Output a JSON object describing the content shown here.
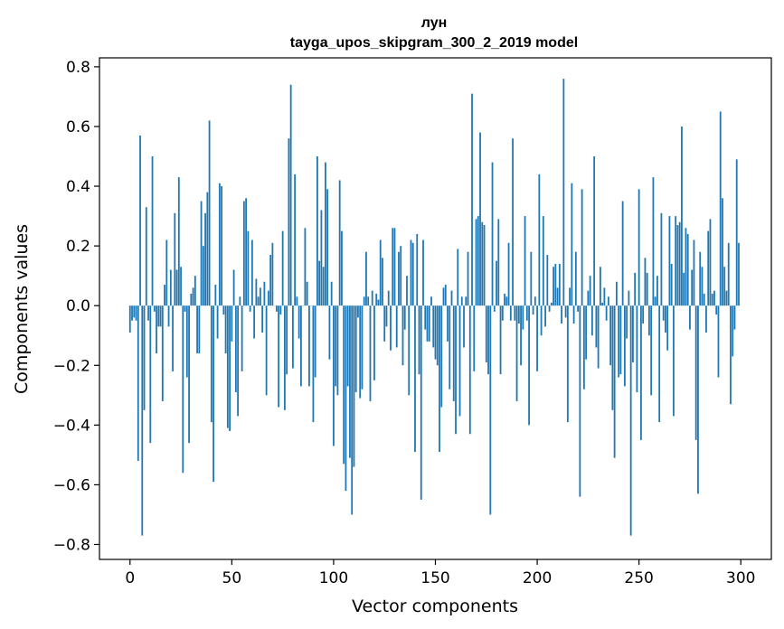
{
  "chart_data": {
    "type": "bar",
    "title_line1": "лун",
    "title_line2": "tayga_upos_skipgram_300_2_2019 model",
    "xlabel": "Vector components",
    "ylabel": "Components values",
    "xlim": [
      -15,
      315
    ],
    "ylim": [
      -0.85,
      0.83
    ],
    "xticks": [
      0,
      50,
      100,
      150,
      200,
      250,
      300
    ],
    "xtick_labels": [
      "0",
      "50",
      "100",
      "150",
      "200",
      "250",
      "300"
    ],
    "yticks": [
      -0.8,
      -0.6,
      -0.4,
      -0.2,
      0.0,
      0.2,
      0.4,
      0.6,
      0.8
    ],
    "ytick_labels": [
      "−0.8",
      "−0.6",
      "−0.4",
      "−0.2",
      "0.0",
      "0.2",
      "0.4",
      "0.6",
      "0.8"
    ],
    "bar_color": "#1f77b4",
    "values": [
      -0.09,
      -0.05,
      -0.04,
      -0.05,
      -0.52,
      0.57,
      -0.77,
      -0.35,
      0.33,
      -0.05,
      -0.46,
      0.5,
      -0.02,
      -0.16,
      -0.07,
      -0.07,
      -0.32,
      0.07,
      0.22,
      -0.07,
      0.12,
      -0.22,
      0.31,
      0.12,
      0.43,
      0.13,
      -0.56,
      -0.02,
      -0.24,
      -0.46,
      0.04,
      0.06,
      0.1,
      -0.16,
      -0.16,
      0.35,
      0.2,
      0.31,
      0.38,
      0.62,
      -0.39,
      -0.59,
      0.07,
      -0.11,
      0.41,
      0.4,
      -0.03,
      -0.16,
      -0.41,
      -0.42,
      -0.12,
      0.12,
      -0.29,
      -0.37,
      0.03,
      -0.22,
      0.35,
      0.36,
      0.25,
      -0.02,
      0.22,
      -0.11,
      0.09,
      0.03,
      0.06,
      -0.09,
      0.08,
      -0.3,
      0.05,
      0.17,
      0.21,
      0.0,
      -0.02,
      -0.34,
      -0.03,
      0.25,
      -0.35,
      -0.23,
      0.56,
      0.74,
      -0.21,
      0.44,
      0.03,
      -0.11,
      -0.27,
      0.0,
      0.26,
      0.08,
      -0.27,
      0.0,
      -0.39,
      -0.24,
      0.5,
      0.15,
      0.32,
      0.13,
      0.48,
      0.39,
      -0.18,
      0.08,
      -0.47,
      -0.27,
      -0.3,
      0.42,
      0.25,
      -0.53,
      -0.62,
      -0.27,
      -0.51,
      -0.7,
      -0.54,
      -0.29,
      -0.04,
      -0.31,
      -0.28,
      0.03,
      0.18,
      0.03,
      -0.32,
      0.05,
      -0.25,
      0.04,
      0.02,
      0.22,
      0.16,
      -0.12,
      -0.07,
      0.05,
      -0.15,
      0.26,
      0.26,
      -0.14,
      0.18,
      0.2,
      -0.2,
      -0.08,
      0.1,
      -0.3,
      0.22,
      0.21,
      -0.49,
      0.24,
      -0.23,
      -0.65,
      0.22,
      -0.08,
      -0.12,
      -0.12,
      0.03,
      -0.14,
      -0.18,
      -0.2,
      -0.49,
      -0.34,
      0.06,
      0.07,
      -0.12,
      -0.28,
      0.05,
      -0.32,
      -0.43,
      0.19,
      -0.37,
      0.03,
      -0.14,
      0.03,
      0.18,
      -0.43,
      0.71,
      -0.22,
      0.29,
      0.3,
      0.58,
      0.28,
      0.27,
      -0.19,
      -0.23,
      -0.7,
      0.48,
      -0.02,
      0.15,
      0.29,
      -0.23,
      -0.05,
      0.04,
      0.03,
      0.21,
      -0.05,
      0.56,
      -0.05,
      -0.32,
      -0.06,
      -0.2,
      -0.08,
      0.3,
      -0.05,
      -0.4,
      0.18,
      -0.03,
      0.03,
      -0.22,
      0.44,
      -0.1,
      0.3,
      -0.07,
      0.17,
      -0.02,
      0.01,
      0.13,
      0.14,
      0.06,
      0.14,
      -0.06,
      0.76,
      -0.04,
      -0.39,
      0.06,
      0.41,
      -0.06,
      0.18,
      -0.02,
      -0.64,
      0.39,
      -0.28,
      -0.18,
      0.05,
      0.1,
      -0.1,
      0.5,
      -0.14,
      -0.21,
      0.13,
      0.01,
      0.06,
      -0.05,
      0.03,
      -0.2,
      -0.35,
      -0.51,
      0.08,
      -0.24,
      -0.23,
      0.35,
      -0.27,
      -0.11,
      0.05,
      -0.77,
      -0.19,
      0.11,
      -0.29,
      0.39,
      -0.45,
      -0.06,
      0.16,
      0.11,
      -0.1,
      -0.3,
      0.43,
      0.03,
      0.1,
      -0.39,
      0.31,
      -0.05,
      -0.09,
      -0.15,
      0.3,
      0.14,
      -0.37,
      0.3,
      0.27,
      0.28,
      0.6,
      0.11,
      0.26,
      0.24,
      -0.08,
      0.12,
      0.22,
      -0.45,
      -0.63,
      0.18,
      0.13,
      0.04,
      -0.09,
      0.25,
      0.29,
      0.04,
      0.05,
      -0.03,
      -0.24,
      0.65,
      0.36,
      0.13,
      0.05,
      0.21,
      -0.33,
      -0.17,
      -0.08,
      0.49,
      0.21
    ]
  }
}
